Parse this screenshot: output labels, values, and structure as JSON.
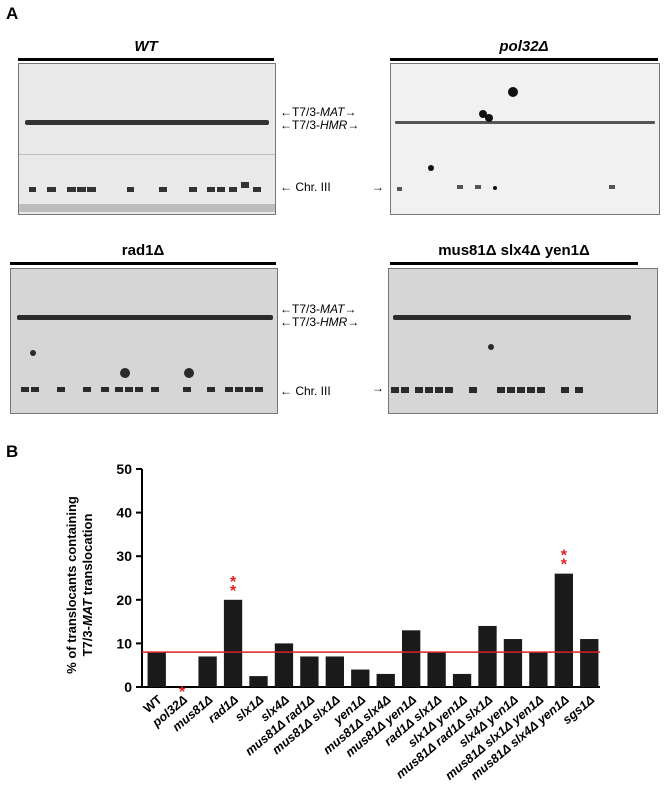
{
  "panel_a": {
    "letter": "A",
    "gels": [
      {
        "id": "wt",
        "title": "WT"
      },
      {
        "id": "pol32",
        "title": "pol32Δ"
      },
      {
        "id": "rad1",
        "title": "rad1Δ"
      },
      {
        "id": "mus81slx4yen1",
        "title": "mus81Δ slx4Δ yen1Δ"
      }
    ],
    "band_labels": {
      "mat_prefix": "T7/3-",
      "mat_suffix": "MAT",
      "hmr_prefix": "T7/3-",
      "hmr_suffix": "HMR",
      "chr": "Chr. III",
      "arrow_left": "←",
      "arrow_right": "→",
      "arrow_double": "⇆"
    }
  },
  "panel_b": {
    "letter": "B",
    "chart_data": {
      "type": "bar",
      "ylabel_line1": "% of translocants containing",
      "ylabel_line2_prefix": "T7/3-",
      "ylabel_line2_italic": "MAT",
      "ylabel_line2_suffix": " translocation",
      "ylim": [
        0,
        50
      ],
      "yticks": [
        0,
        10,
        20,
        30,
        40,
        50
      ],
      "reference_line": 8,
      "reference_color": "#e02020",
      "bar_color": "#1a1a1a",
      "categories": [
        "WT",
        "pol32Δ",
        "mus81Δ",
        "rad1Δ",
        "slx1Δ",
        "slx4Δ",
        "mus81Δ rad1Δ",
        "mus81Δ slx1Δ",
        "yen1Δ",
        "mus81Δ slx4Δ",
        "mus81Δ yen1Δ",
        "rad1Δ slx1Δ",
        "slx1Δ yen1Δ",
        "mus81Δ rad1Δ slx1Δ",
        "slx4Δ yen1Δ",
        "mus81Δ slx1Δ yen1Δ",
        "mus81Δ slx4Δ yen1Δ",
        "sgs1Δ"
      ],
      "values": [
        8,
        0,
        7,
        20,
        2.5,
        10,
        7,
        7,
        4,
        3,
        13,
        8,
        3,
        14,
        11,
        8,
        26,
        11
      ],
      "significance": [
        {
          "index": 1,
          "label": "*"
        },
        {
          "index": 3,
          "label": "**"
        },
        {
          "index": 16,
          "label": "**"
        }
      ]
    }
  }
}
